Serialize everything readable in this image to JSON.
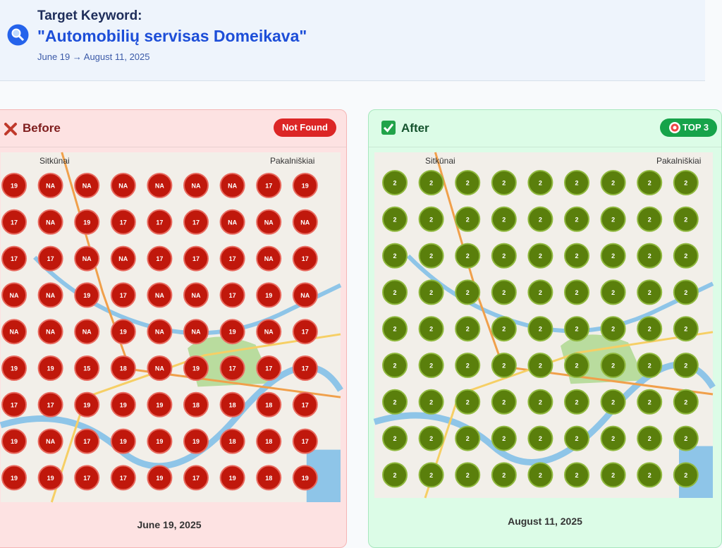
{
  "header": {
    "title": "Target Keyword:",
    "keyword": "\"Automobilių servisas Domeikava\"",
    "date_range": "June 19 → August 11, 2025"
  },
  "panels": [
    {
      "label": "Before",
      "badge": "Not Found",
      "map_labels": [
        "Sitkūnai",
        "Pakalniškiai"
      ],
      "date": "June 19, 2025",
      "grid": [
        [
          "19",
          "NA",
          "NA",
          "NA",
          "NA",
          "NA",
          "NA",
          "17",
          "19"
        ],
        [
          "17",
          "NA",
          "19",
          "17",
          "17",
          "17",
          "NA",
          "NA",
          "NA"
        ],
        [
          "17",
          "17",
          "NA",
          "NA",
          "17",
          "17",
          "17",
          "NA",
          "17"
        ],
        [
          "NA",
          "NA",
          "19",
          "17",
          "NA",
          "NA",
          "17",
          "19",
          "NA"
        ],
        [
          "NA",
          "NA",
          "NA",
          "19",
          "NA",
          "NA",
          "19",
          "NA",
          "17"
        ],
        [
          "19",
          "19",
          "15",
          "18",
          "NA",
          "19",
          "17",
          "17",
          "17"
        ],
        [
          "17",
          "17",
          "19",
          "19",
          "19",
          "18",
          "18",
          "18",
          "17"
        ],
        [
          "19",
          "NA",
          "17",
          "19",
          "19",
          "19",
          "18",
          "18",
          "17"
        ],
        [
          "19",
          "19",
          "17",
          "17",
          "19",
          "17",
          "19",
          "18",
          "19"
        ]
      ]
    },
    {
      "label": "After",
      "badge": "TOP 3",
      "map_labels": [
        "Sitkūnai",
        "Pakalniškiai"
      ],
      "date": "August 11, 2025",
      "grid": [
        [
          "2",
          "2",
          "2",
          "2",
          "2",
          "2",
          "2",
          "2",
          "2"
        ],
        [
          "2",
          "2",
          "2",
          "2",
          "2",
          "2",
          "2",
          "2",
          "2"
        ],
        [
          "2",
          "2",
          "2",
          "2",
          "2",
          "2",
          "2",
          "2",
          "2"
        ],
        [
          "2",
          "2",
          "2",
          "2",
          "2",
          "2",
          "2",
          "2",
          "2"
        ],
        [
          "2",
          "2",
          "2",
          "2",
          "2",
          "2",
          "2",
          "2",
          "2"
        ],
        [
          "2",
          "2",
          "2",
          "2",
          "2",
          "2",
          "2",
          "2",
          "2"
        ],
        [
          "2",
          "2",
          "2",
          "2",
          "2",
          "2",
          "2",
          "2",
          "2"
        ],
        [
          "2",
          "2",
          "2",
          "2",
          "2",
          "2",
          "2",
          "2",
          "2"
        ],
        [
          "2",
          "2",
          "2",
          "2",
          "2",
          "2",
          "2",
          "2",
          "2"
        ]
      ]
    }
  ]
}
